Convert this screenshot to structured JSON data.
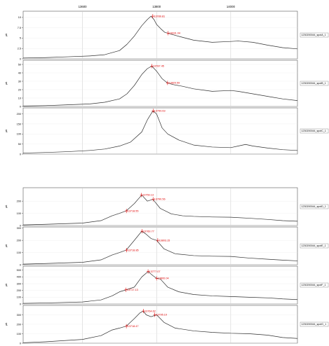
{
  "axis": {
    "xmin": 13440,
    "xmax": 14180,
    "ticks": [
      13600,
      13800,
      14000
    ],
    "tick_labels": [
      "13600",
      "13800",
      "14000"
    ],
    "ylabel": "µA"
  },
  "colors": {
    "trace": "#303030",
    "annotation": "#e00000",
    "grid": "#c8c8c8",
    "frame": "#555555"
  },
  "chart_data": [
    {
      "type": "line",
      "name": "1230200044_spotA_1",
      "ylim": [
        0,
        11.5
      ],
      "yticks": [
        0,
        2.5,
        5,
        7.5,
        10
      ],
      "ytick_labels": [
        "0",
        "2.5",
        "5",
        "7.5",
        "10"
      ],
      "x": [
        13440,
        13500,
        13560,
        13620,
        13660,
        13700,
        13720,
        13740,
        13760,
        13775,
        13785,
        13793,
        13800,
        13812,
        13822,
        13830,
        13845,
        13870,
        13900,
        13950,
        14000,
        14020,
        14060,
        14100,
        14140,
        14180
      ],
      "y": [
        0.2,
        0.3,
        0.5,
        0.7,
        1.0,
        2.0,
        3.5,
        5.5,
        8.0,
        9.5,
        10.3,
        9.5,
        8.3,
        7.2,
        6.4,
        6.2,
        5.8,
        5.2,
        4.5,
        4.0,
        4.2,
        4.3,
        4.0,
        3.3,
        2.7,
        2.4
      ],
      "annotations": [
        {
          "x": 13789.81,
          "y": 10.3,
          "label": "13789.81"
        },
        {
          "x": 13831.04,
          "y": 6.2,
          "label": "13831.04"
        }
      ]
    },
    {
      "type": "line",
      "name": "1230200044_spotB_1",
      "ylim": [
        0,
        55
      ],
      "yticks": [
        0,
        10,
        20,
        30,
        40,
        50
      ],
      "ytick_labels": [
        "0",
        "10",
        "20",
        "30",
        "40",
        "50"
      ],
      "x": [
        13440,
        13500,
        13560,
        13620,
        13660,
        13700,
        13720,
        13740,
        13760,
        13775,
        13787,
        13800,
        13815,
        13829,
        13845,
        13870,
        13900,
        13950,
        14000,
        14020,
        14060,
        14100,
        14140,
        14180
      ],
      "y": [
        0.5,
        1,
        2,
        3,
        5,
        9,
        15,
        25,
        38,
        45,
        48,
        42,
        33,
        28,
        26,
        24,
        21,
        18,
        19,
        18,
        15,
        12,
        9,
        7
      ],
      "annotations": [
        {
          "x": 13787.45,
          "y": 48,
          "label": "13787.45"
        },
        {
          "x": 13829.59,
          "y": 28,
          "label": "13829.59"
        }
      ]
    },
    {
      "type": "line",
      "name": "1230200044_spotC_1",
      "ylim": [
        0,
        230
      ],
      "yticks": [
        0,
        50,
        100,
        150,
        200
      ],
      "ytick_labels": [
        "0",
        "50",
        "100",
        "150",
        "200"
      ],
      "x": [
        13440,
        13500,
        13560,
        13620,
        13660,
        13700,
        13730,
        13760,
        13775,
        13790,
        13800,
        13815,
        13830,
        13860,
        13900,
        13950,
        14000,
        14020,
        14040,
        14060,
        14100,
        14140,
        14180
      ],
      "y": [
        5,
        8,
        12,
        18,
        25,
        40,
        60,
        110,
        170,
        215,
        200,
        130,
        100,
        70,
        45,
        35,
        32,
        40,
        48,
        40,
        30,
        22,
        18
      ],
      "annotations": [
        {
          "x": 13790.63,
          "y": 215,
          "label": "13790.63"
        }
      ]
    },
    {
      "type": "line",
      "name": "1230200044_spotD_1",
      "ylim": [
        0,
        310
      ],
      "yticks": [
        0,
        100,
        200
      ],
      "ytick_labels": [
        "0",
        "100",
        "200"
      ],
      "x": [
        13440,
        13500,
        13600,
        13650,
        13680,
        13700,
        13718,
        13740,
        13760,
        13775,
        13790,
        13810,
        13840,
        13870,
        13900,
        13950,
        14000,
        14050,
        14100,
        14140,
        14180
      ],
      "y": [
        5,
        10,
        20,
        40,
        80,
        100,
        120,
        180,
        250,
        200,
        215,
        140,
        95,
        80,
        75,
        70,
        68,
        60,
        50,
        40,
        35
      ],
      "annotations": [
        {
          "x": 13718.55,
          "y": 120,
          "label": "13718.55"
        },
        {
          "x": 13759.13,
          "y": 250,
          "label": "13759.13"
        },
        {
          "x": 13790.56,
          "y": 215,
          "label": "13790.56"
        }
      ]
    },
    {
      "type": "line",
      "name": "1230200044_spotE_1",
      "ylim": [
        0,
        310
      ],
      "yticks": [
        0,
        100,
        200,
        300
      ],
      "ytick_labels": [
        "0",
        "100",
        "200",
        "300"
      ],
      "x": [
        13440,
        13500,
        13600,
        13650,
        13680,
        13700,
        13718,
        13740,
        13760,
        13772,
        13785,
        13800,
        13820,
        13850,
        13900,
        13950,
        14000,
        14050,
        14100,
        14140,
        14180
      ],
      "y": [
        5,
        10,
        20,
        40,
        80,
        100,
        120,
        200,
        275,
        250,
        215,
        200,
        130,
        90,
        75,
        70,
        68,
        55,
        45,
        38,
        32
      ],
      "annotations": [
        {
          "x": 13718.85,
          "y": 120,
          "label": "13718.85"
        },
        {
          "x": 13760.77,
          "y": 275,
          "label": "13760.77"
        },
        {
          "x": 13803.15,
          "y": 200,
          "label": "13803.15"
        }
      ]
    },
    {
      "type": "line",
      "name": "1230200044_spotF_1",
      "ylim": [
        0,
        560
      ],
      "yticks": [
        0,
        100,
        200,
        300,
        400,
        500
      ],
      "ytick_labels": [
        "0",
        "100",
        "200",
        "300",
        "400",
        "500"
      ],
      "x": [
        13440,
        13500,
        13600,
        13650,
        13680,
        13700,
        13718,
        13740,
        13760,
        13777,
        13790,
        13800,
        13810,
        13830,
        13860,
        13900,
        13950,
        14000,
        14050,
        14100,
        14140,
        14180
      ],
      "y": [
        10,
        15,
        30,
        60,
        120,
        180,
        210,
        250,
        400,
        480,
        420,
        380,
        370,
        250,
        180,
        140,
        120,
        110,
        100,
        90,
        75,
        65
      ],
      "annotations": [
        {
          "x": 13717.13,
          "y": 210,
          "label": "13717.13"
        },
        {
          "x": 13777.07,
          "y": 480,
          "label": "13777.07"
        },
        {
          "x": 13800.04,
          "y": 380,
          "label": "13800.04"
        }
      ]
    },
    {
      "type": "line",
      "name": "1230200044_spotG_1",
      "ylim": [
        0,
        400
      ],
      "yticks": [
        0,
        100,
        200,
        300
      ],
      "ytick_labels": [
        "0",
        "100",
        "200",
        "300"
      ],
      "x": [
        13440,
        13500,
        13600,
        13650,
        13680,
        13700,
        13718,
        13740,
        13755,
        13764,
        13772,
        13785,
        13800,
        13820,
        13850,
        13900,
        13950,
        14000,
        14050,
        14100,
        14140,
        14180
      ],
      "y": [
        5,
        15,
        40,
        80,
        140,
        160,
        180,
        260,
        320,
        340,
        300,
        280,
        300,
        220,
        160,
        130,
        115,
        105,
        100,
        85,
        60,
        50
      ],
      "annotations": [
        {
          "x": 13718.47,
          "y": 180,
          "label": "13718.47"
        },
        {
          "x": 13764.62,
          "y": 340,
          "label": "13764.62"
        },
        {
          "x": 13795.19,
          "y": 300,
          "label": "13795.19"
        }
      ]
    }
  ]
}
